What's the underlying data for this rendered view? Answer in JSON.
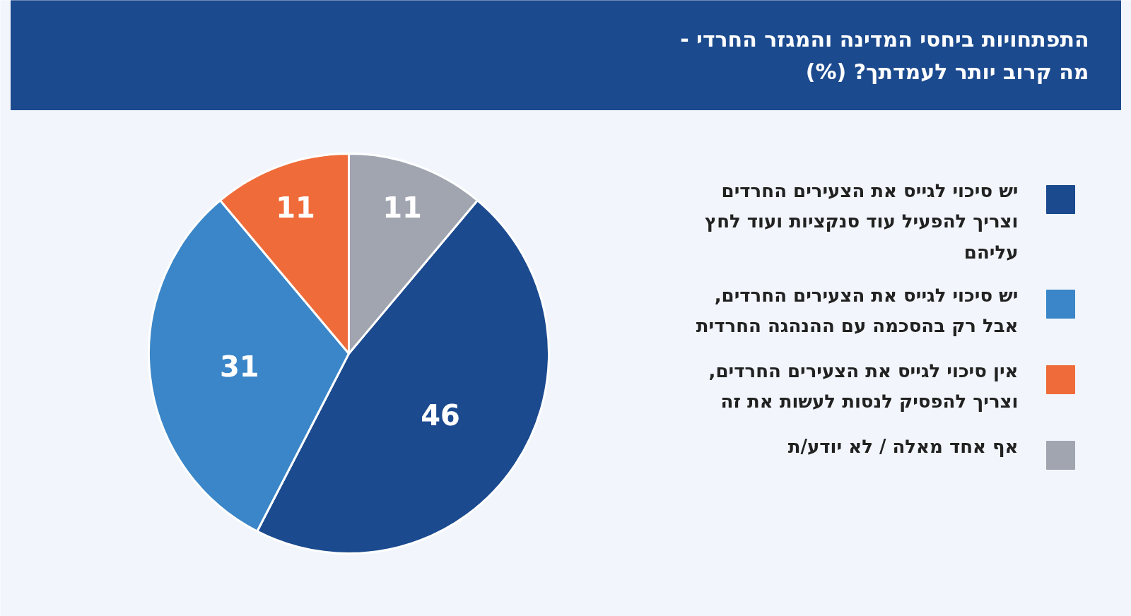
{
  "chart_data": {
    "type": "pie",
    "title": "התפתחויות ביחסי המדינה והמגזר החרדי - מה קרוב יותר לעמדתך? (%)",
    "categories": [
      "יש סיכוי לגייס את הצעירים החרדים וצריך להפעיל עוד סנקציות ועוד לחץ עליהם",
      "יש סיכוי לגייס את הצעירים החרדים, אבל רק בהסכמה עם ההנהגה החרדית",
      "אין סיכוי לגייס את הצעירים החרדים, וצריך להפסיק לנסות לעשות את זה",
      "אף אחד מאלה / לא יודע/ת"
    ],
    "values": [
      46,
      31,
      11,
      11
    ],
    "colors": [
      "#1b4a8f",
      "#3a86c8",
      "#ef6c3a",
      "#a0a5b0"
    ],
    "data_labels": true,
    "legend": "right"
  }
}
